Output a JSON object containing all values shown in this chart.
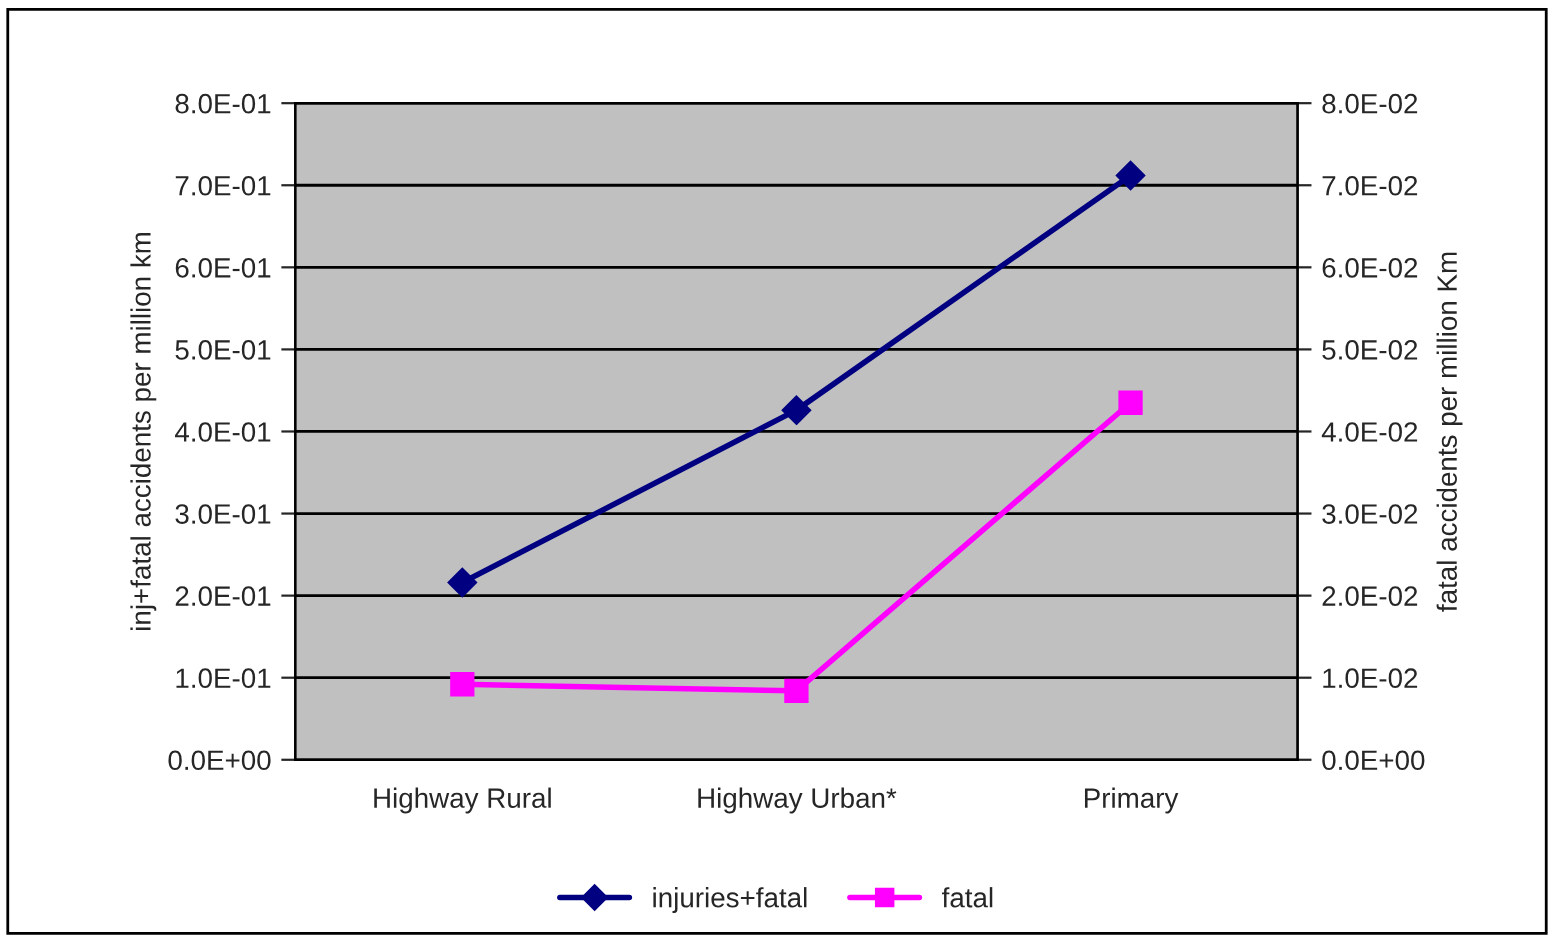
{
  "chart_data": {
    "type": "line",
    "categories": [
      "Highway Rural",
      "Highway Urban*",
      "Primary"
    ],
    "ylabel": "inj+fatal accidents per million km",
    "y2label": "fatal accidents per million Km",
    "series": [
      {
        "name": "injuries+fatal",
        "color": "#000080",
        "values": [
          0.216,
          0.426,
          0.712
        ],
        "marker": "diamond"
      },
      {
        "name": "fatal",
        "color": "#ff00ff",
        "values": [
          0.0092,
          0.0084,
          0.0435
        ],
        "marker": "square",
        "axis": "y2"
      }
    ],
    "ylim": [
      0,
      0.8
    ],
    "yticks": [
      {
        "value": 0,
        "label": "0.0E+00"
      },
      {
        "value": 0.1,
        "label": "1.0E-01"
      },
      {
        "value": 0.2,
        "label": "2.0E-01"
      },
      {
        "value": 0.3,
        "label": "3.0E-01"
      },
      {
        "value": 0.4,
        "label": "4.0E-01"
      },
      {
        "value": 0.5,
        "label": "5.0E-01"
      },
      {
        "value": 0.6,
        "label": "6.0E-01"
      },
      {
        "value": 0.7,
        "label": "7.0E-01"
      },
      {
        "value": 0.8,
        "label": "8.0E-01"
      }
    ],
    "y2lim": [
      0,
      0.08
    ],
    "y2ticks": [
      {
        "value": 0,
        "label": "0.0E+00"
      },
      {
        "value": 0.01,
        "label": "1.0E-02"
      },
      {
        "value": 0.02,
        "label": "2.0E-02"
      },
      {
        "value": 0.03,
        "label": "3.0E-02"
      },
      {
        "value": 0.04,
        "label": "4.0E-02"
      },
      {
        "value": 0.05,
        "label": "5.0E-02"
      },
      {
        "value": 0.06,
        "label": "6.0E-02"
      },
      {
        "value": 0.07,
        "label": "7.0E-02"
      },
      {
        "value": 0.08,
        "label": "8.0E-02"
      }
    ],
    "grid": "y",
    "legend": "bottom",
    "line_style": "solid"
  }
}
